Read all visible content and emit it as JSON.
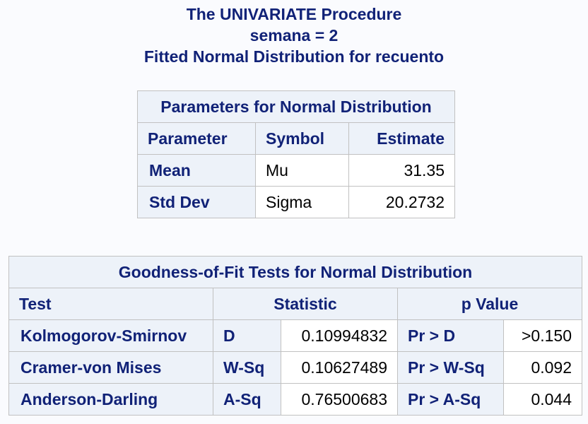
{
  "titles": {
    "line1": "The UNIVARIATE Procedure",
    "line2": "semana = 2",
    "line3": "Fitted Normal Distribution for recuento"
  },
  "params_table": {
    "caption": "Parameters for Normal Distribution",
    "headers": [
      "Parameter",
      "Symbol",
      "Estimate"
    ],
    "rows": [
      {
        "parameter": "Mean",
        "symbol": "Mu",
        "estimate": "31.35"
      },
      {
        "parameter": "Std Dev",
        "symbol": "Sigma",
        "estimate": "20.2732"
      }
    ]
  },
  "gof_table": {
    "caption": "Goodness-of-Fit Tests for Normal Distribution",
    "headers": {
      "test": "Test",
      "statistic": "Statistic",
      "p_value": "p Value"
    },
    "rows": [
      {
        "test": "Kolmogorov-Smirnov",
        "stat_symbol": "D",
        "stat_value": "0.10994832",
        "p_label": "Pr > D",
        "p_value": ">0.150"
      },
      {
        "test": "Cramer-von Mises",
        "stat_symbol": "W-Sq",
        "stat_value": "0.10627489",
        "p_label": "Pr > W-Sq",
        "p_value": "0.092"
      },
      {
        "test": "Anderson-Darling",
        "stat_symbol": "A-Sq",
        "stat_value": "0.76500683",
        "p_label": "Pr > A-Sq",
        "p_value": "0.044"
      }
    ]
  },
  "colors": {
    "header_bg": "#edf2f9",
    "header_text": "#112277",
    "border": "#c1c1c1",
    "page_bg": "#fafbfe"
  }
}
